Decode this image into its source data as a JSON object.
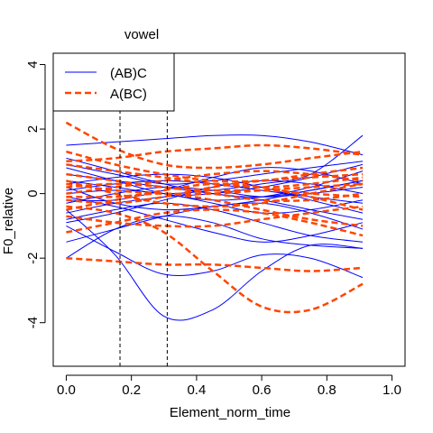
{
  "chart_data": {
    "type": "line",
    "title": "vowel",
    "xlabel": "Element_norm_time",
    "ylabel": "F0_relative",
    "xlim": [
      -0.04,
      1.04
    ],
    "ylim": [
      -5.35,
      4.35
    ],
    "x_ticks": [
      "0.0",
      "0.2",
      "0.4",
      "0.6",
      "0.8",
      "1.0"
    ],
    "y_ticks": [
      "-4",
      "-2",
      "0",
      "2",
      "4"
    ],
    "grid": false,
    "legend_position": "top-left",
    "vlines": [
      0.165,
      0.31
    ],
    "series": [
      {
        "name": "(AB)C",
        "color": "#0000ff",
        "style": "solid",
        "x": [
          0,
          0.15,
          0.3,
          0.45,
          0.6,
          0.75,
          0.91
        ],
        "curves": [
          [
            1.5,
            1.6,
            1.7,
            1.8,
            1.8,
            1.6,
            1.2
          ],
          [
            -2.0,
            -1.1,
            -0.7,
            -0.9,
            -1.4,
            -1.6,
            -1.7
          ],
          [
            -0.5,
            -1.9,
            -3.8,
            -3.6,
            -2.4,
            -1.6,
            -1.7
          ],
          [
            -1.0,
            -1.8,
            -2.5,
            -2.4,
            -1.9,
            -2.0,
            -2.6
          ],
          [
            0.4,
            0.2,
            0.0,
            0.1,
            0.3,
            0.6,
            1.8
          ],
          [
            0.9,
            0.6,
            0.3,
            0.4,
            0.6,
            0.8,
            1.0
          ],
          [
            -0.3,
            0.0,
            0.2,
            0.1,
            -0.1,
            0.0,
            0.2
          ],
          [
            0.2,
            -0.3,
            -0.5,
            -0.4,
            -0.2,
            0.1,
            0.4
          ],
          [
            -0.8,
            -0.5,
            -0.3,
            -0.5,
            -0.9,
            -1.3,
            -1.5
          ],
          [
            0.6,
            0.4,
            0.2,
            0.0,
            -0.2,
            -0.5,
            -0.8
          ],
          [
            -0.2,
            -0.2,
            0.1,
            0.5,
            0.8,
            0.7,
            0.3
          ],
          [
            0.0,
            0.1,
            0.0,
            -0.3,
            -0.6,
            -0.5,
            -0.2
          ],
          [
            1.1,
            0.7,
            0.3,
            0.0,
            -0.1,
            0.1,
            0.4
          ],
          [
            -1.5,
            -1.1,
            -0.7,
            -0.4,
            -0.3,
            -0.6,
            -1.1
          ],
          [
            0.3,
            0.5,
            0.6,
            0.5,
            0.2,
            -0.2,
            -0.6
          ],
          [
            -0.6,
            -0.3,
            -0.1,
            0.0,
            0.2,
            0.5,
            0.9
          ],
          [
            0.8,
            0.4,
            0.0,
            -0.2,
            -0.1,
            0.2,
            0.7
          ],
          [
            -0.1,
            -0.4,
            -0.8,
            -1.2,
            -1.5,
            -1.3,
            -0.9
          ],
          [
            0.1,
            0.3,
            0.4,
            0.3,
            0.1,
            -0.1,
            -0.3
          ],
          [
            -0.9,
            -0.6,
            -0.2,
            0.2,
            0.4,
            0.3,
            0.0
          ]
        ]
      },
      {
        "name": "A(BC)",
        "color": "#ff4500",
        "style": "dashed",
        "x": [
          0,
          0.15,
          0.3,
          0.45,
          0.6,
          0.75,
          0.91
        ],
        "curves": [
          [
            2.2,
            1.4,
            0.9,
            0.8,
            0.9,
            1.1,
            1.3
          ],
          [
            1.0,
            1.1,
            1.3,
            1.4,
            1.5,
            1.4,
            1.2
          ],
          [
            -2.0,
            -2.1,
            -2.2,
            -2.2,
            -2.3,
            -2.4,
            -2.3
          ],
          [
            -0.4,
            -0.6,
            -1.2,
            -2.4,
            -3.5,
            -3.6,
            -2.8
          ],
          [
            0.3,
            0.1,
            0.0,
            0.0,
            0.1,
            0.2,
            0.3
          ],
          [
            -0.2,
            -0.3,
            -0.1,
            0.2,
            0.4,
            0.5,
            0.6
          ],
          [
            0.6,
            0.4,
            0.2,
            0.1,
            0.1,
            0.0,
            -0.1
          ],
          [
            -0.7,
            -0.9,
            -1.0,
            -1.0,
            -0.8,
            -0.6,
            -0.4
          ],
          [
            0.9,
            0.7,
            0.5,
            0.3,
            0.2,
            0.3,
            0.5
          ],
          [
            -1.2,
            -0.9,
            -0.6,
            -0.5,
            -0.6,
            -0.9,
            -1.3
          ],
          [
            0.0,
            0.2,
            0.4,
            0.6,
            0.7,
            0.6,
            0.4
          ],
          [
            0.4,
            0.0,
            -0.3,
            -0.4,
            -0.3,
            0.0,
            0.3
          ],
          [
            -0.5,
            -0.2,
            0.1,
            0.3,
            0.2,
            -0.1,
            -0.5
          ],
          [
            1.3,
            0.9,
            0.6,
            0.4,
            0.4,
            0.6,
            0.8
          ],
          [
            -0.1,
            -0.1,
            0.0,
            -0.2,
            -0.5,
            -0.8,
            -1.0
          ],
          [
            0.2,
            0.3,
            0.2,
            0.0,
            -0.2,
            -0.2,
            0.0
          ]
        ]
      }
    ]
  }
}
